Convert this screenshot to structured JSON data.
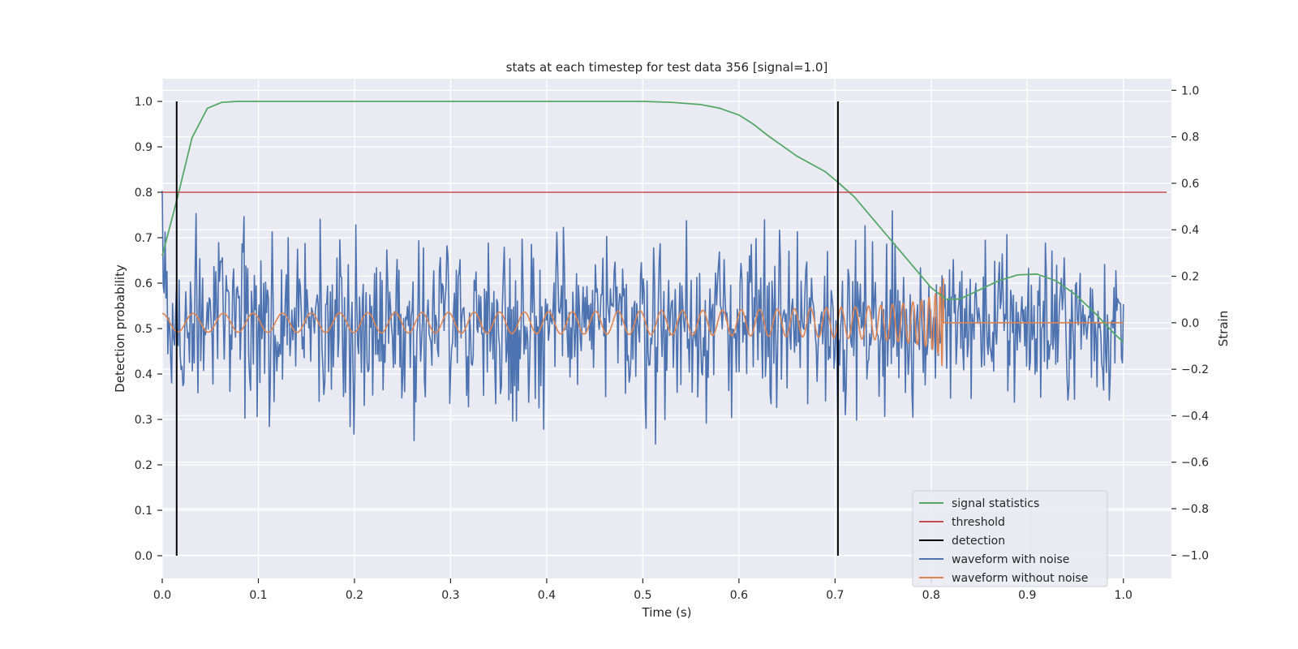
{
  "chart_data": {
    "type": "line",
    "title": "stats at each timestep for test data 356 [signal=1.0]",
    "xlabel": "Time (s)",
    "ylabel": "Detection probability",
    "ylabel_right": "Strain",
    "xlim": [
      0.0,
      1.05
    ],
    "ylim": [
      -0.05,
      1.05
    ],
    "ylim_right": [
      -1.1,
      1.05
    ],
    "xticks": [
      "0.0",
      "0.1",
      "0.2",
      "0.3",
      "0.4",
      "0.5",
      "0.6",
      "0.7",
      "0.8",
      "0.9",
      "1.0"
    ],
    "yticks": [
      "0.0",
      "0.1",
      "0.2",
      "0.3",
      "0.4",
      "0.5",
      "0.6",
      "0.7",
      "0.8",
      "0.9",
      "1.0"
    ],
    "yticks_right": [
      "−1.0",
      "−0.8",
      "−0.6",
      "−0.4",
      "−0.2",
      "0.0",
      "0.2",
      "0.4",
      "0.6",
      "0.8",
      "1.0"
    ],
    "grid": true,
    "legend_position": "lower-right",
    "series": [
      {
        "name": "signal statistics",
        "color": "#55a868",
        "axis": "left",
        "x": [
          0.0,
          0.016,
          0.031,
          0.047,
          0.062,
          0.078,
          0.1,
          0.2,
          0.3,
          0.4,
          0.5,
          0.53,
          0.56,
          0.58,
          0.6,
          0.615,
          0.63,
          0.66,
          0.69,
          0.703,
          0.72,
          0.74,
          0.76,
          0.78,
          0.8,
          0.815,
          0.83,
          0.85,
          0.87,
          0.89,
          0.91,
          0.93,
          0.95,
          0.97,
          0.99,
          1.0
        ],
        "y": [
          0.66,
          0.79,
          0.92,
          0.985,
          0.998,
          1.0,
          1.0,
          1.0,
          1.0,
          1.0,
          1.0,
          0.998,
          0.993,
          0.985,
          0.97,
          0.95,
          0.925,
          0.88,
          0.845,
          0.822,
          0.79,
          0.74,
          0.69,
          0.64,
          0.59,
          0.565,
          0.565,
          0.585,
          0.605,
          0.618,
          0.62,
          0.605,
          0.575,
          0.535,
          0.49,
          0.47
        ]
      },
      {
        "name": "threshold",
        "color": "#c44e52",
        "axis": "left",
        "x": [
          0.0,
          1.045
        ],
        "y": [
          0.8,
          0.8
        ]
      },
      {
        "name": "detection",
        "color": "#000000",
        "axis": "left",
        "x": [
          0.015,
          0.703
        ],
        "y_range": [
          0.0,
          1.0
        ]
      },
      {
        "name": "waveform with noise",
        "color": "#4c72b0",
        "axis": "right",
        "x_range": [
          0.0,
          1.0
        ],
        "samples": 1024,
        "amplitude_range": [
          -1.0,
          1.0
        ]
      },
      {
        "name": "waveform without noise",
        "color": "#dd8452",
        "axis": "right",
        "x_range": [
          0.0,
          1.0
        ],
        "merger_time": 0.813,
        "start_frequency_hz": 31,
        "start_amplitude": 0.04,
        "peak_amplitude": 0.2
      }
    ]
  }
}
